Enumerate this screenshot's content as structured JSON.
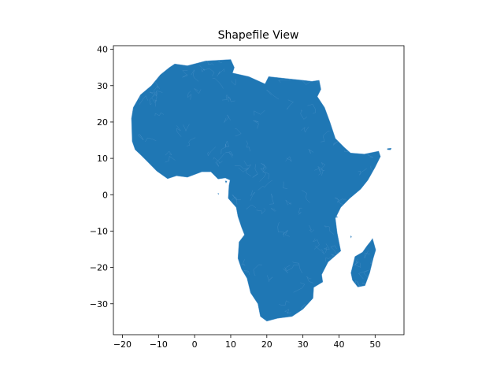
{
  "title": "Shapefile View",
  "style": {
    "fill_color": "#1f77b4",
    "edge_color": "#5b9bd0",
    "axes_color": "#000000",
    "background": "#ffffff"
  },
  "chart_data": {
    "type": "map",
    "title": "Shapefile View",
    "xlabel": "",
    "ylabel": "",
    "xlim": [
      -22.5,
      58
    ],
    "ylim": [
      -38.5,
      41
    ],
    "xticks": [
      -20,
      -10,
      0,
      10,
      20,
      30,
      40,
      50
    ],
    "yticks": [
      -30,
      -20,
      -10,
      0,
      10,
      20,
      30,
      40
    ],
    "grid": false,
    "features": [
      {
        "name": "Africa mainland",
        "coordinates": [
          [
            -17.5,
            21
          ],
          [
            -17,
            24
          ],
          [
            -15,
            27.5
          ],
          [
            -12,
            30
          ],
          [
            -9.5,
            33
          ],
          [
            -7,
            35
          ],
          [
            -5.5,
            36
          ],
          [
            -2,
            35.5
          ],
          [
            3,
            36.8
          ],
          [
            10,
            37.2
          ],
          [
            11,
            35
          ],
          [
            10.5,
            33.5
          ],
          [
            15,
            32.5
          ],
          [
            19.5,
            30.5
          ],
          [
            20.5,
            32.5
          ],
          [
            25,
            32
          ],
          [
            30,
            31.5
          ],
          [
            32.5,
            31.2
          ],
          [
            34.5,
            31.5
          ],
          [
            35,
            29
          ],
          [
            34,
            27
          ],
          [
            36,
            24
          ],
          [
            37.5,
            20
          ],
          [
            39,
            15.5
          ],
          [
            41.5,
            13
          ],
          [
            43.2,
            11.5
          ],
          [
            47,
            11.2
          ],
          [
            51,
            12
          ],
          [
            51.5,
            10.5
          ],
          [
            50,
            7.5
          ],
          [
            48,
            4
          ],
          [
            46,
            1.5
          ],
          [
            43,
            -1
          ],
          [
            40.5,
            -3.5
          ],
          [
            39,
            -6.5
          ],
          [
            39.5,
            -10.5
          ],
          [
            40.5,
            -15.5
          ],
          [
            37,
            -18.5
          ],
          [
            35.2,
            -22
          ],
          [
            35.5,
            -24
          ],
          [
            33,
            -25.5
          ],
          [
            32.8,
            -28.5
          ],
          [
            30,
            -31.5
          ],
          [
            27,
            -33.5
          ],
          [
            23,
            -34
          ],
          [
            20,
            -34.8
          ],
          [
            18.2,
            -33.5
          ],
          [
            17.5,
            -30
          ],
          [
            15.5,
            -27
          ],
          [
            14.5,
            -23
          ],
          [
            13,
            -20.5
          ],
          [
            12,
            -17.5
          ],
          [
            12.3,
            -13
          ],
          [
            13.8,
            -11
          ],
          [
            13,
            -9
          ],
          [
            12,
            -6
          ],
          [
            11.5,
            -3.5
          ],
          [
            9.3,
            -1
          ],
          [
            9.5,
            2.5
          ],
          [
            9.8,
            4
          ],
          [
            8.5,
            4.6
          ],
          [
            6.5,
            4.3
          ],
          [
            4.5,
            6.3
          ],
          [
            2,
            6.3
          ],
          [
            -2,
            4.8
          ],
          [
            -5,
            5.2
          ],
          [
            -7.5,
            4.4
          ],
          [
            -10.5,
            6.5
          ],
          [
            -13.5,
            9.5
          ],
          [
            -15,
            11
          ],
          [
            -16.5,
            12.4
          ],
          [
            -17.3,
            14.7
          ]
        ]
      },
      {
        "name": "Madagascar",
        "coordinates": [
          [
            49.3,
            -12
          ],
          [
            50.2,
            -15.2
          ],
          [
            49.5,
            -17.5
          ],
          [
            48.5,
            -21.5
          ],
          [
            47.2,
            -25
          ],
          [
            45.2,
            -25.4
          ],
          [
            43.7,
            -23.5
          ],
          [
            43.3,
            -21.5
          ],
          [
            44.4,
            -17
          ],
          [
            46.5,
            -15.8
          ],
          [
            47.8,
            -14
          ],
          [
            48.6,
            -13
          ]
        ]
      },
      {
        "name": "Socotra",
        "coordinates": [
          [
            53.4,
            12.7
          ],
          [
            54.5,
            12.8
          ],
          [
            54.3,
            12.35
          ],
          [
            53.4,
            12.4
          ]
        ]
      },
      {
        "name": "Bioko",
        "coordinates": [
          [
            8.45,
            3.8
          ],
          [
            8.95,
            3.75
          ],
          [
            8.7,
            3.2
          ]
        ]
      },
      {
        "name": "Sao Tome",
        "coordinates": [
          [
            6.45,
            0.4
          ],
          [
            6.75,
            0.3
          ],
          [
            6.55,
            0.05
          ]
        ]
      },
      {
        "name": "Zanzibar",
        "coordinates": [
          [
            39.25,
            -5.7
          ],
          [
            39.5,
            -5.9
          ],
          [
            39.45,
            -6.45
          ]
        ]
      },
      {
        "name": "Comoros",
        "coordinates": [
          [
            43.2,
            -11.3
          ],
          [
            43.5,
            -11.5
          ],
          [
            43.3,
            -11.9
          ]
        ]
      }
    ]
  }
}
